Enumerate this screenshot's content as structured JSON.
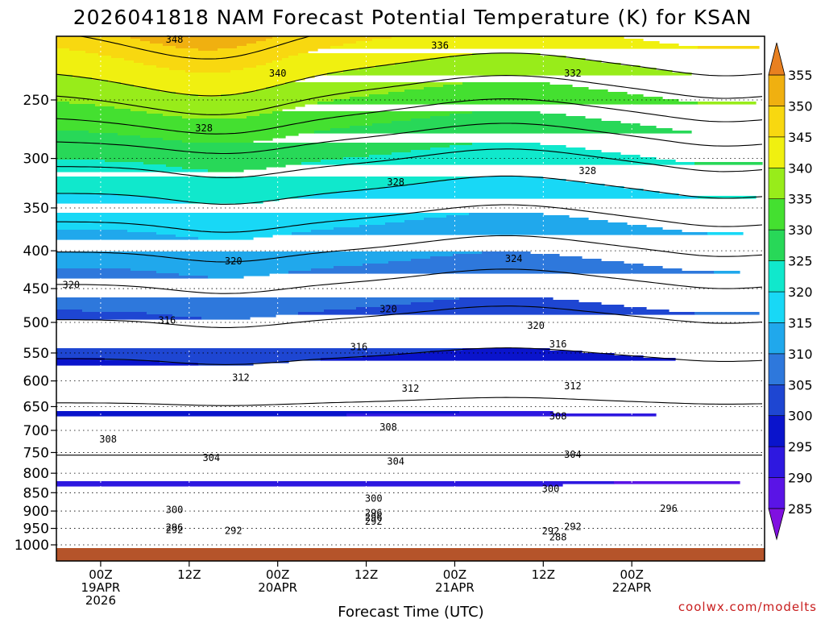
{
  "chart_data": {
    "type": "contour",
    "title": "2026041818 NAM Forecast Potential Temperature (K) for KSAN",
    "xlabel": "Forecast Time (UTC)",
    "ylabel": "",
    "y_axis": {
      "scale": "log-pressure",
      "reversed": true,
      "ticks": [
        250,
        300,
        350,
        400,
        450,
        500,
        550,
        600,
        650,
        700,
        750,
        800,
        850,
        900,
        950,
        1000
      ]
    },
    "x_axis": {
      "unit": "hours from 2026-04-19 00Z",
      "range": [
        -6,
        90
      ],
      "ticks": [
        {
          "t": 0,
          "lines": [
            "00Z",
            "19APR",
            "2026"
          ]
        },
        {
          "t": 12,
          "lines": [
            "12Z"
          ]
        },
        {
          "t": 24,
          "lines": [
            "00Z",
            "20APR"
          ]
        },
        {
          "t": 36,
          "lines": [
            "12Z"
          ]
        },
        {
          "t": 48,
          "lines": [
            "00Z",
            "21APR"
          ]
        },
        {
          "t": 60,
          "lines": [
            "12Z"
          ]
        },
        {
          "t": 72,
          "lines": [
            "00Z",
            "22APR"
          ]
        }
      ]
    },
    "grid": true,
    "colorbar": {
      "levels": [
        285,
        290,
        295,
        300,
        305,
        310,
        315,
        320,
        325,
        330,
        335,
        340,
        345,
        350,
        355
      ],
      "colors": [
        "#8010e0",
        "#5a14e6",
        "#2e18e0",
        "#0a14cc",
        "#1e46d2",
        "#2e78dc",
        "#20a8ec",
        "#18d8f6",
        "#10e8cc",
        "#28d858",
        "#44e030",
        "#98ec1a",
        "#f0f010",
        "#f8d810",
        "#f0b010",
        "#e88020"
      ],
      "extend": "both"
    },
    "isentropes": [
      {
        "theta": 292,
        "labels": [
          {
            "t": 10,
            "p": 955
          },
          {
            "t": 18,
            "p": 957
          },
          {
            "t": 37,
            "p": 930
          },
          {
            "t": 64,
            "p": 945
          }
        ]
      },
      {
        "theta": 296,
        "labels": [
          {
            "t": 10,
            "p": 948
          },
          {
            "t": 37,
            "p": 918
          },
          {
            "t": 77,
            "p": 893
          }
        ]
      },
      {
        "theta": 300,
        "labels": [
          {
            "t": 10,
            "p": 897
          },
          {
            "t": 37,
            "p": 866
          },
          {
            "t": 61,
            "p": 840
          }
        ]
      },
      {
        "theta": 304,
        "labels": [
          {
            "t": 15,
            "p": 762
          },
          {
            "t": 40,
            "p": 771
          },
          {
            "t": 64,
            "p": 755
          }
        ]
      },
      {
        "theta": 308,
        "labels": [
          {
            "t": 1,
            "p": 720
          },
          {
            "t": 39,
            "p": 693
          },
          {
            "t": 62,
            "p": 670
          }
        ]
      },
      {
        "theta": 312,
        "labels": [
          {
            "t": 19,
            "p": 594
          },
          {
            "t": 42,
            "p": 614
          },
          {
            "t": 64,
            "p": 610
          }
        ]
      },
      {
        "theta": 316,
        "labels": [
          {
            "t": 9,
            "p": 497
          },
          {
            "t": 35,
            "p": 540
          },
          {
            "t": 62,
            "p": 535
          }
        ]
      },
      {
        "theta": 320,
        "labels": [
          {
            "t": -4,
            "p": 445
          },
          {
            "t": 18,
            "p": 413
          },
          {
            "t": 39,
            "p": 480
          },
          {
            "t": 59,
            "p": 505
          }
        ]
      },
      {
        "theta": 324,
        "labels": [
          {
            "t": 56,
            "p": 410
          }
        ]
      },
      {
        "theta": 328,
        "labels": [
          {
            "t": 14,
            "p": 273
          },
          {
            "t": 40,
            "p": 323
          },
          {
            "t": 66,
            "p": 312
          }
        ]
      },
      {
        "theta": 332,
        "labels": [
          {
            "t": 64,
            "p": 230
          }
        ]
      },
      {
        "theta": 336,
        "labels": [
          {
            "t": 46,
            "p": 211
          }
        ]
      },
      {
        "theta": 340,
        "labels": [
          {
            "t": 24,
            "p": 230
          }
        ]
      },
      {
        "theta": 348,
        "labels": [
          {
            "t": 10,
            "p": 207
          }
        ]
      }
    ],
    "extra_labels": [
      {
        "text": "288",
        "t": 62,
        "p": 977
      },
      {
        "text": "296",
        "t": 37,
        "p": 905
      },
      {
        "text": "292",
        "t": 61,
        "p": 958
      }
    ],
    "surface_color": "#b5542a"
  },
  "credit": "coolwx.com/modelts"
}
